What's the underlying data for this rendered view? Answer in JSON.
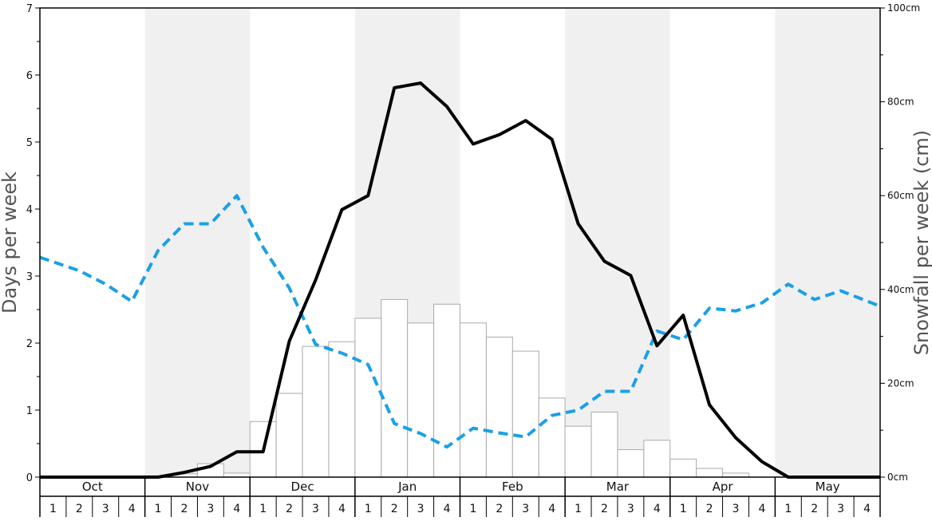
{
  "chart_data": {
    "type": "bar+line",
    "title": "",
    "ylabel_left": "Days per week",
    "ylabel_right": "Snowfall per week (cm)",
    "ylim_left": [
      0,
      7
    ],
    "ylim_right": [
      0,
      100
    ],
    "yticks_left": [
      "0",
      "1",
      "2",
      "3",
      "4",
      "5",
      "6",
      "7"
    ],
    "yticks_right": [
      "0cm",
      "20cm",
      "40cm",
      "60cm",
      "80cm",
      "100cm"
    ],
    "months": [
      "Oct",
      "Nov",
      "Dec",
      "Jan",
      "Feb",
      "Mar",
      "Apr",
      "May"
    ],
    "weeks": [
      "1",
      "2",
      "3",
      "4"
    ],
    "shaded_months": [
      "Nov",
      "Jan",
      "Mar",
      "May"
    ],
    "colors": {
      "shade": "#f0f0f0",
      "bar_fill": "#ffffff",
      "bar_stroke": "#aaaaaa",
      "days_line": "#000000",
      "dashed_line": "#1aa0e6"
    },
    "bars_snowfall_days_per_week": [
      0,
      0,
      0,
      0,
      0.02,
      0.05,
      0.2,
      0.06,
      0.83,
      1.25,
      1.95,
      2.02,
      2.37,
      2.65,
      2.3,
      2.58,
      2.3,
      2.09,
      1.88,
      1.18,
      0.76,
      0.97,
      0.41,
      0.55,
      0.27,
      0.13,
      0.06,
      0,
      0,
      0,
      0,
      0
    ],
    "line_snowfall_cm_per_week": [
      0,
      0,
      0,
      0,
      0,
      1,
      2.3,
      5.4,
      5.4,
      29,
      42,
      57,
      60,
      83,
      84,
      79,
      71,
      73,
      76,
      72,
      54,
      46,
      43,
      28,
      34.5,
      15.4,
      8.4,
      3.3,
      0,
      0,
      0,
      0
    ],
    "dashed_line_days_per_week": [
      3.28,
      3.08,
      2.88,
      2.62,
      3.38,
      3.78,
      3.78,
      4.2,
      3.43,
      2.82,
      1.98,
      1.85,
      1.68,
      0.8,
      0.65,
      0.45,
      0.73,
      0.66,
      0.6,
      0.92,
      1.0,
      1.28,
      1.28,
      2.18,
      2.05,
      2.52,
      2.48,
      2.6,
      2.88,
      2.65,
      2.78,
      2.55
    ]
  }
}
